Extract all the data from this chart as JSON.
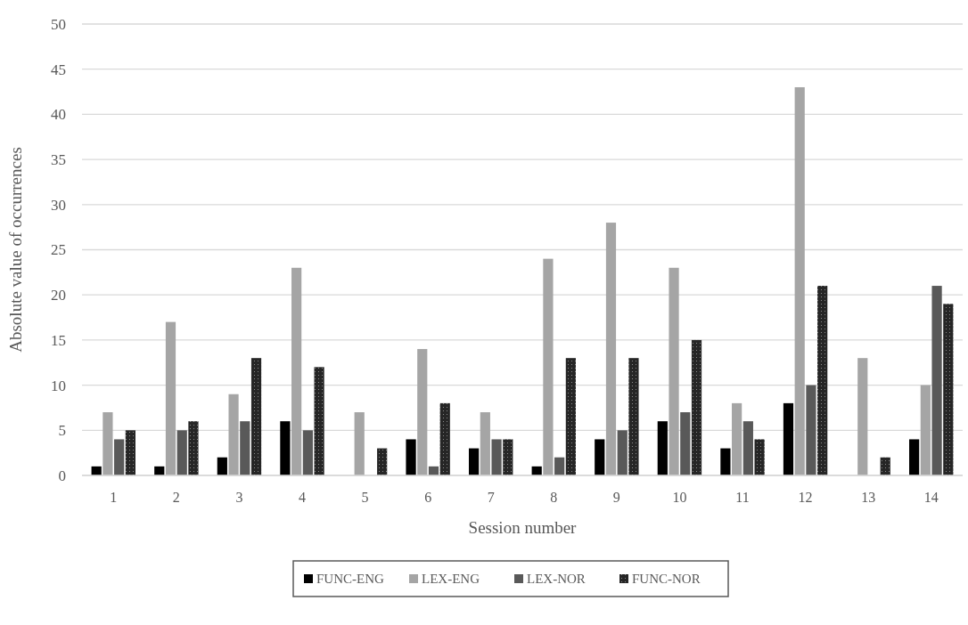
{
  "chart_data": {
    "type": "bar",
    "xlabel": "Session number",
    "ylabel": "Absolute value of occurrences",
    "categories": [
      "1",
      "2",
      "3",
      "4",
      "5",
      "6",
      "7",
      "8",
      "9",
      "10",
      "11",
      "12",
      "13",
      "14"
    ],
    "series": [
      {
        "name": "FUNC-ENG",
        "color": "#000000",
        "values": [
          1,
          1,
          2,
          6,
          0,
          4,
          3,
          1,
          4,
          6,
          3,
          8,
          0,
          4
        ]
      },
      {
        "name": "LEX-ENG",
        "color": "#a5a5a5",
        "values": [
          7,
          17,
          9,
          23,
          7,
          14,
          7,
          24,
          28,
          23,
          8,
          43,
          13,
          10
        ]
      },
      {
        "name": "LEX-NOR",
        "color": "#595959",
        "values": [
          4,
          5,
          6,
          5,
          0,
          1,
          4,
          2,
          5,
          7,
          6,
          10,
          0,
          21
        ]
      },
      {
        "name": "FUNC-NOR",
        "color": "#262626",
        "values": [
          5,
          6,
          13,
          12,
          3,
          8,
          4,
          13,
          13,
          15,
          4,
          21,
          2,
          19
        ]
      }
    ],
    "ylim": [
      0,
      50
    ],
    "yticks": [
      0,
      5,
      10,
      15,
      20,
      25,
      30,
      35,
      40,
      45,
      50
    ],
    "grid": "y",
    "legend": "bottom"
  }
}
